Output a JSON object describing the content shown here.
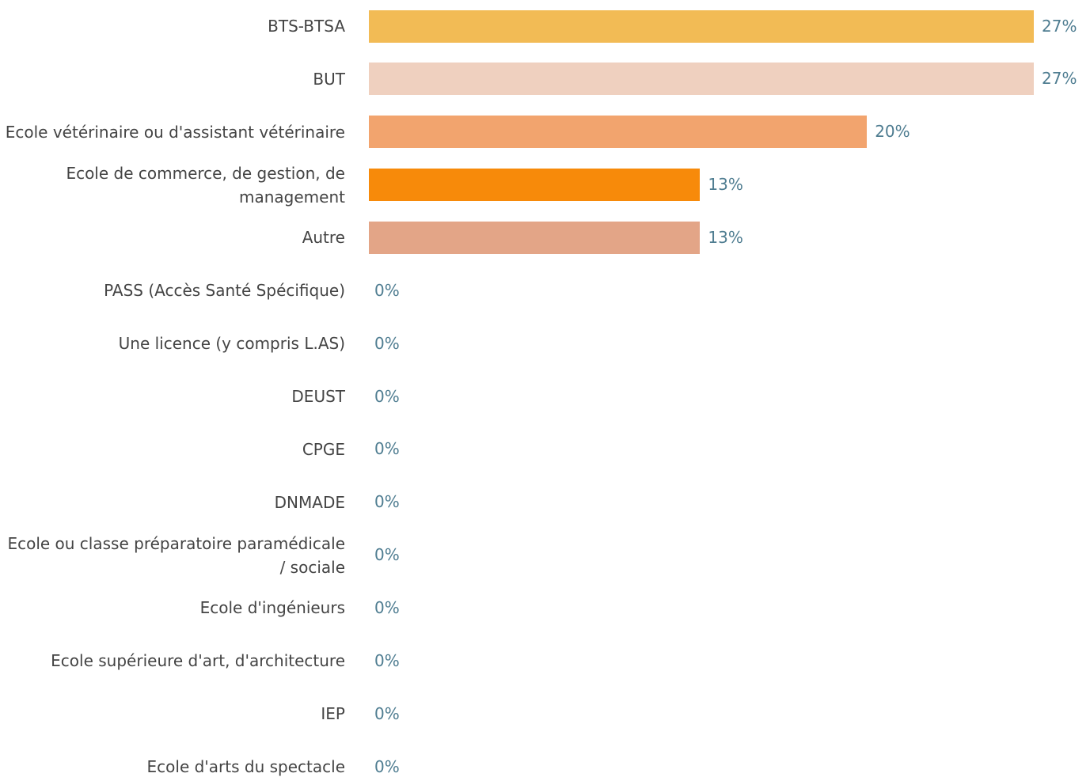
{
  "chart_data": {
    "type": "bar",
    "orientation": "horizontal",
    "categories": [
      "BTS-BTSA",
      "BUT",
      "Ecole vétérinaire ou d'assistant vétérinaire",
      "Ecole de commerce, de gestion, de management",
      "Autre",
      "PASS (Accès Santé Spécifique)",
      "Une licence (y compris L.AS)",
      "DEUST",
      "CPGE",
      "DNMADE",
      "Ecole ou classe préparatoire paramédicale / sociale",
      "Ecole d'ingénieurs",
      "Ecole supérieure d'art, d'architecture",
      "IEP",
      "Ecole d'arts du spectacle"
    ],
    "values": [
      26.7,
      26.7,
      20,
      13.3,
      13.3,
      0,
      0,
      0,
      0,
      0,
      0,
      0,
      0,
      0,
      0
    ],
    "value_labels": [
      "27%",
      "27%",
      "20%",
      "13%",
      "13%",
      "0%",
      "0%",
      "0%",
      "0%",
      "0%",
      "0%",
      "0%",
      "0%",
      "0%",
      "0%"
    ],
    "colors": [
      "#f2bb55",
      "#efd0bf",
      "#f2a46e",
      "#f78a0a",
      "#e3a587",
      "#f2bb55",
      "#efd0bf",
      "#f2a46e",
      "#f78a0a",
      "#e3a587",
      "#f2bb55",
      "#efd0bf",
      "#f2a46e",
      "#f78a0a",
      "#e3a587"
    ]
  }
}
